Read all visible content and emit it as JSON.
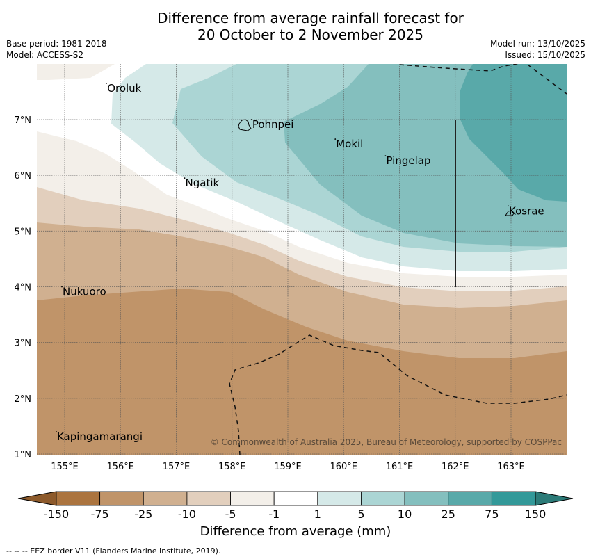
{
  "header": {
    "title_line1": "Difference from average rainfall forecast for",
    "title_line2": "20 October to 2 November 2025",
    "base_period": "Base period: 1981-2018",
    "model": "Model: ACCESS-S2",
    "model_run": "Model run: 13/10/2025",
    "issued": "Issued: 15/10/2025"
  },
  "map": {
    "lon_range": [
      154.5,
      164.0
    ],
    "lat_range": [
      1.0,
      8.0
    ],
    "lon_ticks": [
      {
        "value": 155,
        "label": "155°E"
      },
      {
        "value": 156,
        "label": "156°E"
      },
      {
        "value": 157,
        "label": "157°E"
      },
      {
        "value": 158,
        "label": "158°E"
      },
      {
        "value": 159,
        "label": "159°E"
      },
      {
        "value": 160,
        "label": "160°E"
      },
      {
        "value": 161,
        "label": "161°E"
      },
      {
        "value": 162,
        "label": "162°E"
      },
      {
        "value": 163,
        "label": "163°E"
      }
    ],
    "lat_ticks": [
      {
        "value": 1,
        "label": "1°N"
      },
      {
        "value": 2,
        "label": "2°N"
      },
      {
        "value": 3,
        "label": "3°N"
      },
      {
        "value": 4,
        "label": "4°N"
      },
      {
        "value": 5,
        "label": "5°N"
      },
      {
        "value": 6,
        "label": "6°N"
      },
      {
        "value": 7,
        "label": "7°N"
      }
    ],
    "places": [
      {
        "name": "Oroluk",
        "lon": 155.75,
        "lat": 7.5
      },
      {
        "name": "Pohnpei",
        "lon": 158.35,
        "lat": 6.85
      },
      {
        "name": "Mokil",
        "lon": 159.85,
        "lat": 6.5
      },
      {
        "name": "Pingelap",
        "lon": 160.75,
        "lat": 6.2
      },
      {
        "name": "Ngatik",
        "lon": 157.15,
        "lat": 5.8
      },
      {
        "name": "Kosrae",
        "lon": 162.95,
        "lat": 5.3
      },
      {
        "name": "Nukuoro",
        "lon": 154.95,
        "lat": 3.85
      },
      {
        "name": "Kapingamarangi",
        "lon": 154.85,
        "lat": 1.25
      }
    ],
    "copyright": "© Commonwealth of Australia 2025, Bureau of Meteorology, supported by COSPPac"
  },
  "colorbar": {
    "levels": [
      "-150",
      "-75",
      "-25",
      "-10",
      "-5",
      "-1",
      "1",
      "5",
      "10",
      "25",
      "75",
      "150"
    ],
    "under_color": "#8d5a2b",
    "over_color": "#2c7b78",
    "colors": [
      "#ab743f",
      "#c09469",
      "#d0b090",
      "#e2cfbd",
      "#f3efe9",
      "#ffffff",
      "#d5e9e8",
      "#abd5d4",
      "#84bfbe",
      "#59a9a9",
      "#339999"
    ],
    "label": "Difference from average (mm)"
  },
  "footnote": "--  --  -- EEZ border V11 (Flanders Marine Institute, 2019)."
}
